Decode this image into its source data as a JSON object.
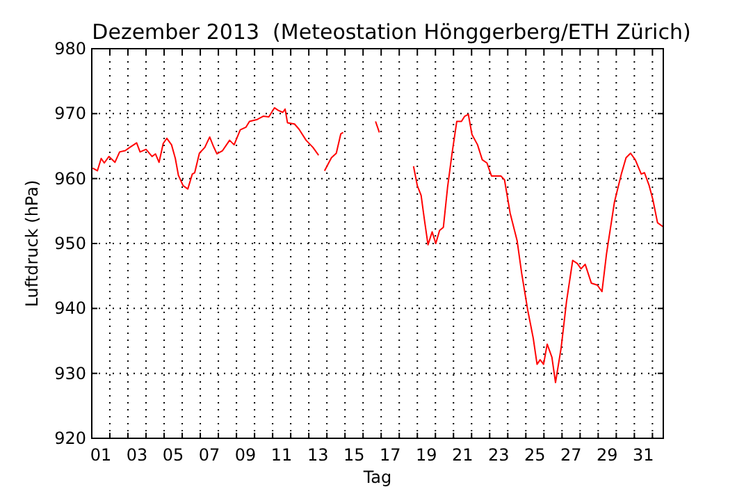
{
  "chart_data": {
    "type": "line",
    "title": "Dezember 2013  (Meteostation Hönggerberg/ETH Zürich)",
    "xlabel": "Tag",
    "ylabel": "Luftdruck (hPa)",
    "xlim": [
      1,
      32.6
    ],
    "ylim": [
      920,
      980
    ],
    "yticks": [
      920,
      930,
      940,
      950,
      960,
      970,
      980
    ],
    "xticks": [
      {
        "value": 1.5,
        "label": "01"
      },
      {
        "value": 3.5,
        "label": "03"
      },
      {
        "value": 5.5,
        "label": "05"
      },
      {
        "value": 7.5,
        "label": "07"
      },
      {
        "value": 9.5,
        "label": "09"
      },
      {
        "value": 11.5,
        "label": "11"
      },
      {
        "value": 13.5,
        "label": "13"
      },
      {
        "value": 15.5,
        "label": "15"
      },
      {
        "value": 17.5,
        "label": "17"
      },
      {
        "value": 19.5,
        "label": "19"
      },
      {
        "value": 21.5,
        "label": "21"
      },
      {
        "value": 23.5,
        "label": "23"
      },
      {
        "value": 25.5,
        "label": "25"
      },
      {
        "value": 27.5,
        "label": "27"
      },
      {
        "value": 29.5,
        "label": "29"
      },
      {
        "value": 31.5,
        "label": "31"
      },
      {
        "value": 2,
        "label": null
      },
      {
        "value": 3,
        "label": null
      },
      {
        "value": 4,
        "label": null
      },
      {
        "value": 5,
        "label": null
      },
      {
        "value": 6,
        "label": null
      },
      {
        "value": 7,
        "label": null
      },
      {
        "value": 8,
        "label": null
      },
      {
        "value": 9,
        "label": null
      },
      {
        "value": 10,
        "label": null
      },
      {
        "value": 11,
        "label": null
      },
      {
        "value": 12,
        "label": null
      },
      {
        "value": 13,
        "label": null
      },
      {
        "value": 14,
        "label": null
      },
      {
        "value": 15,
        "label": null
      },
      {
        "value": 16,
        "label": null
      },
      {
        "value": 17,
        "label": null
      },
      {
        "value": 18,
        "label": null
      },
      {
        "value": 19,
        "label": null
      },
      {
        "value": 20,
        "label": null
      },
      {
        "value": 21,
        "label": null
      },
      {
        "value": 22,
        "label": null
      },
      {
        "value": 23,
        "label": null
      },
      {
        "value": 24,
        "label": null
      },
      {
        "value": 25,
        "label": null
      },
      {
        "value": 26,
        "label": null
      },
      {
        "value": 27,
        "label": null
      },
      {
        "value": 28,
        "label": null
      },
      {
        "value": 29,
        "label": null
      },
      {
        "value": 30,
        "label": null
      },
      {
        "value": 31,
        "label": null
      },
      {
        "value": 32,
        "label": null
      }
    ],
    "grid": true,
    "series": [
      {
        "color": "#ff0000",
        "x": [
          1.05,
          1.31,
          1.52,
          1.69,
          1.95,
          2.28,
          2.54,
          2.85,
          3.1,
          3.48,
          3.67,
          4.0,
          4.33,
          4.52,
          4.72,
          4.95,
          5.15,
          5.41,
          5.62,
          5.79,
          6.05,
          6.31,
          6.56,
          6.69,
          6.95,
          7.25,
          7.52,
          7.72,
          7.92,
          8.23,
          8.62,
          8.87,
          9.21,
          9.52,
          9.72,
          10.15,
          10.48,
          10.79,
          11.1,
          11.31,
          11.56,
          11.69,
          11.82,
          12.21,
          12.46,
          12.85,
          13.23,
          13.54,
          13.7,
          13.87,
          14.25,
          14.52,
          14.77,
          14.9,
          15.8,
          16.69,
          16.9,
          17.8,
          18.79,
          19.0,
          19.21,
          19.38,
          19.59,
          19.82,
          20.02,
          20.23,
          20.44,
          20.67,
          20.92,
          21.18,
          21.44,
          21.62,
          21.82,
          22.02,
          22.33,
          22.59,
          22.85,
          23.1,
          23.62,
          23.82,
          24.13,
          24.52,
          24.77,
          25.1,
          25.41,
          25.62,
          25.79,
          25.98,
          26.18,
          26.44,
          26.64,
          26.95,
          27.25,
          27.59,
          27.85,
          28.05,
          28.28,
          28.62,
          28.95,
          29.21,
          29.46,
          29.9,
          30.28,
          30.54,
          30.79,
          31.05,
          31.38,
          31.56,
          31.82,
          32.02,
          32.28,
          32.58
        ],
        "values": [
          961.6,
          961.2,
          963.1,
          962.4,
          963.4,
          962.5,
          964.1,
          964.3,
          964.8,
          965.5,
          964.1,
          964.5,
          963.4,
          963.8,
          962.5,
          965.4,
          966.2,
          965.2,
          963.1,
          960.5,
          958.9,
          958.4,
          960.7,
          960.9,
          963.9,
          964.8,
          966.4,
          965.0,
          963.8,
          964.3,
          965.9,
          965.2,
          967.5,
          967.9,
          968.8,
          969.1,
          969.6,
          969.5,
          970.9,
          970.5,
          970.2,
          970.7,
          968.6,
          968.4,
          967.6,
          965.9,
          964.8,
          963.6,
          null,
          961.2,
          963.2,
          963.9,
          966.9,
          967.1,
          null,
          968.8,
          967.1,
          null,
          961.9,
          958.9,
          957.4,
          953.9,
          949.8,
          951.8,
          950.0,
          952.0,
          952.5,
          958.6,
          963.9,
          968.8,
          968.8,
          969.6,
          969.9,
          966.8,
          965.2,
          962.9,
          962.4,
          960.4,
          960.4,
          959.8,
          954.7,
          950.4,
          945.4,
          939.8,
          935.4,
          931.4,
          932.1,
          931.4,
          934.5,
          932.5,
          928.6,
          933.9,
          941.1,
          947.4,
          946.9,
          946.1,
          946.8,
          943.9,
          943.6,
          942.6,
          948.4,
          956.4,
          960.7,
          963.2,
          963.9,
          962.9,
          960.7,
          960.9,
          958.9,
          956.8,
          953.2,
          952.6
        ]
      }
    ]
  }
}
